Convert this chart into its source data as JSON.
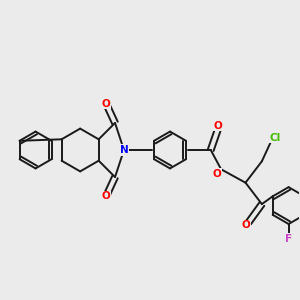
{
  "bg_color": "#ebebeb",
  "bond_color": "#1a1a1a",
  "bond_width": 1.4,
  "atom_colors": {
    "O": "#ff0000",
    "N": "#0000ff",
    "F": "#cc44cc",
    "Cl": "#44bb00"
  },
  "font_size_atom": 7.5,
  "figsize": [
    3.0,
    3.0
  ],
  "dpi": 100,
  "xlim": [
    0,
    10
  ],
  "ylim": [
    -2,
    6
  ]
}
